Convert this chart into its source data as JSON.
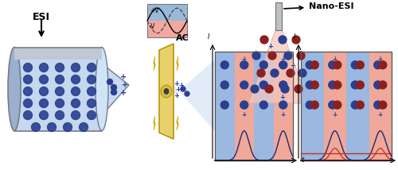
{
  "fig_width": 5.0,
  "fig_height": 2.14,
  "dpi": 100,
  "bg_color": "#ffffff",
  "esi_label": "ESI",
  "ac_label": "AC",
  "nano_esi_label": "Nano-ESI",
  "plus_v_label": "+V",
  "minus_v_label": "-V",
  "t_label": "t",
  "I_label": "I",
  "blue_dot": "#2a3f8f",
  "red_dot": "#8b2020",
  "tube_fill": "#c5d8f0",
  "tube_edge": "#7a7a8a",
  "tube_cap_fill": "#9ab0cc",
  "electrode_fill": "#e8d06a",
  "electrode_edge": "#b8960a",
  "stripe_blue": "#9ab8e0",
  "stripe_pink": "#f0a898",
  "peak_blue": "#1a2a80",
  "peak_red": "#c83020",
  "vplot_stripe_blue": "#9ab8d8",
  "vplot_stripe_pink": "#f0a8a0",
  "lightning_fill": "#f5d800",
  "lightning_edge": "#c8a000",
  "cone_blue": "#c0d4f0",
  "nano_cone_pink": "#f5c8c0"
}
